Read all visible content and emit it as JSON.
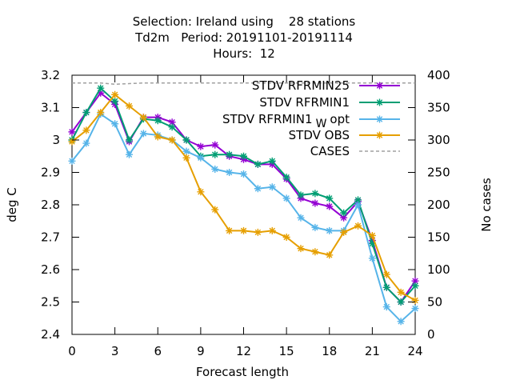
{
  "chart_data": {
    "type": "line",
    "title_lines": [
      "Selection: Ireland using    28 stations",
      "Td2m   Period: 20191101-20191114",
      "Hours:  12"
    ],
    "xlabel": "Forecast length",
    "ylabel": "deg C",
    "y2label": "No cases",
    "xlim": [
      0,
      24
    ],
    "ylim": [
      2.4,
      3.2
    ],
    "y2lim": [
      0,
      400
    ],
    "xticks": [
      "0",
      "3",
      "6",
      "9",
      "12",
      "15",
      "18",
      "21",
      "24"
    ],
    "yticks": [
      "2.4",
      "2.5",
      "2.6",
      "2.7",
      "2.8",
      "2.9",
      "3",
      "3.1",
      "3.2"
    ],
    "y2ticks": [
      "0",
      "50",
      "100",
      "150",
      "200",
      "250",
      "300",
      "350",
      "400"
    ],
    "grid": false,
    "legend_position": "top-right",
    "x": [
      0,
      1,
      2,
      3,
      4,
      5,
      6,
      7,
      8,
      9,
      10,
      11,
      12,
      13,
      14,
      15,
      16,
      17,
      18,
      19,
      20,
      21,
      22,
      23,
      24
    ],
    "series": [
      {
        "name": "STDV RFRMIN25",
        "color": "#9400d3",
        "marker": "star",
        "axis": "y",
        "values": [
          3.025,
          3.085,
          3.145,
          3.11,
          2.995,
          3.07,
          3.07,
          3.055,
          3.0,
          2.98,
          2.985,
          2.95,
          2.94,
          2.925,
          2.925,
          2.88,
          2.82,
          2.805,
          2.795,
          2.76,
          2.81,
          2.69,
          2.545,
          2.5,
          2.565
        ]
      },
      {
        "name": "STDV RFRMIN1",
        "color": "#009e73",
        "marker": "star",
        "axis": "y",
        "values": [
          3.0,
          3.085,
          3.16,
          3.12,
          3.0,
          3.065,
          3.06,
          3.04,
          3.0,
          2.95,
          2.955,
          2.955,
          2.95,
          2.925,
          2.935,
          2.885,
          2.83,
          2.835,
          2.82,
          2.775,
          2.815,
          2.68,
          2.545,
          2.5,
          2.55
        ]
      },
      {
        "name": "STDV RFRMIN1",
        "name_subscript": "W",
        "name_suffix": "opt",
        "color": "#56b4e9",
        "marker": "star",
        "axis": "y",
        "values": [
          2.935,
          2.99,
          3.08,
          3.05,
          2.955,
          3.02,
          3.015,
          3.0,
          2.965,
          2.945,
          2.91,
          2.9,
          2.895,
          2.85,
          2.855,
          2.82,
          2.76,
          2.73,
          2.72,
          2.72,
          2.8,
          2.635,
          2.485,
          2.44,
          2.48
        ]
      },
      {
        "name": "STDV OBS",
        "color": "#e69f00",
        "marker": "star",
        "axis": "y",
        "values": [
          2.995,
          3.03,
          3.085,
          3.14,
          3.105,
          3.07,
          3.01,
          3.0,
          2.945,
          2.84,
          2.785,
          2.72,
          2.72,
          2.715,
          2.72,
          2.7,
          2.665,
          2.655,
          2.645,
          2.715,
          2.735,
          2.705,
          2.585,
          2.53,
          2.505
        ]
      },
      {
        "name": "CASES",
        "color": "#a0a0a0",
        "marker": "none",
        "dashed": true,
        "axis": "y2",
        "values": [
          388,
          388,
          388,
          386,
          387,
          388,
          388,
          388,
          388,
          388,
          388,
          388,
          388,
          388,
          388,
          388,
          388,
          388,
          388,
          388,
          388,
          388,
          388,
          388,
          388
        ]
      }
    ]
  }
}
